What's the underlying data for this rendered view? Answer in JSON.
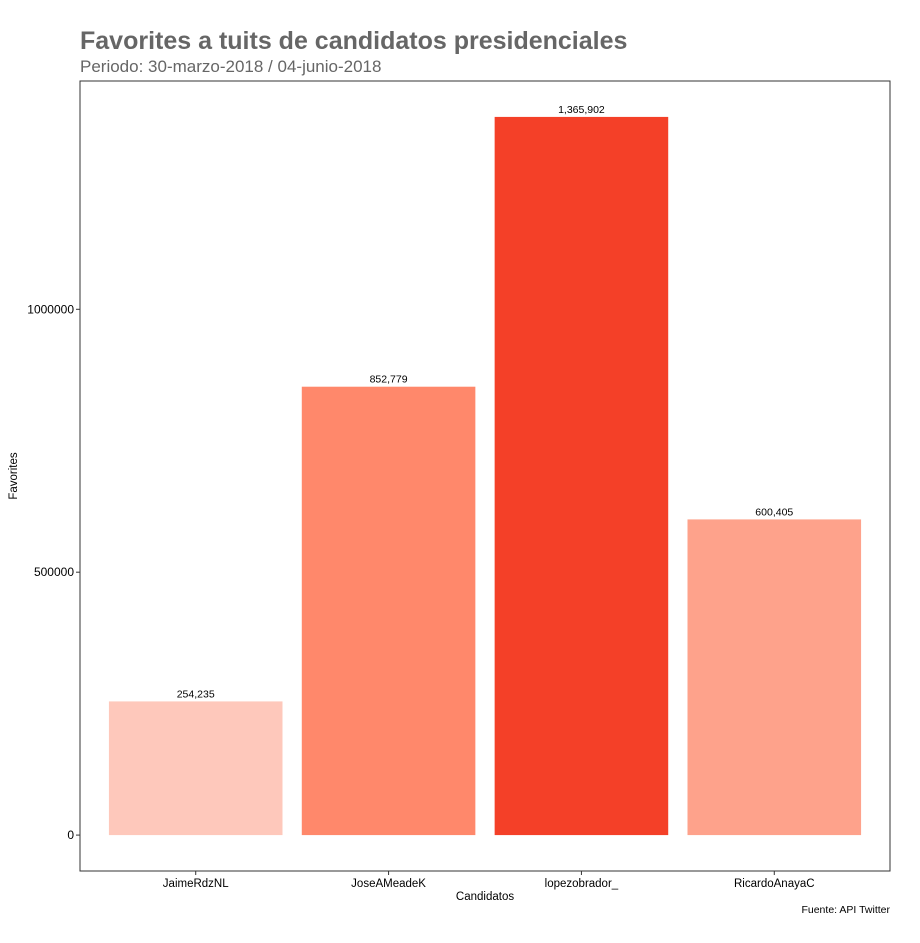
{
  "chart_data": {
    "type": "bar",
    "title": "Favorites a tuits de candidatos presidenciales",
    "subtitle": "Periodo: 30-marzo-2018 / 04-junio-2018",
    "xlabel": "Candidatos",
    "ylabel": "Favorites",
    "caption": "Fuente: API Twitter",
    "categories": [
      "JaimeRdzNL",
      "JoseAMeadeK",
      "lopezobrador_",
      "RicardoAnayaC"
    ],
    "values": [
      254235,
      852779,
      1365902,
      600405
    ],
    "value_labels": [
      "254,235",
      "852,779",
      "1,365,902",
      "600,405"
    ],
    "colors": [
      "#fec8bb",
      "#ff886b",
      "#f44028",
      "#fea28b"
    ],
    "yticks": [
      0,
      500000,
      1000000
    ],
    "ytick_labels": [
      "0",
      "500000",
      "1000000"
    ],
    "ylim": [
      -68300,
      1434200
    ],
    "grid": false,
    "legend": "none"
  }
}
